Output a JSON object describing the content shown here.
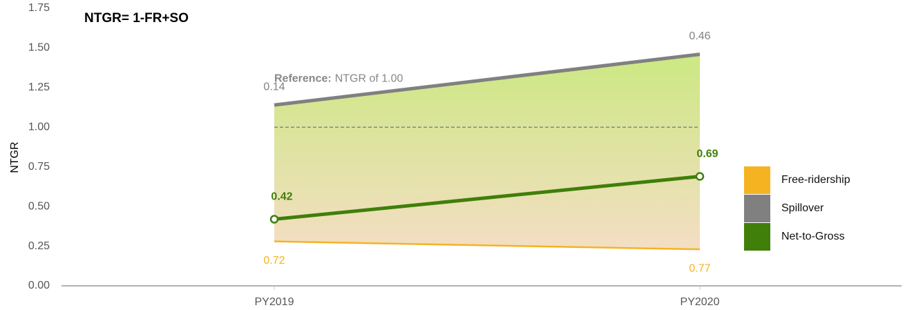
{
  "chart_data": {
    "type": "ntgr",
    "title": "NTGR= 1-FR+SO",
    "y_label": "NTGR",
    "categories": [
      "PY2019",
      "PY2020"
    ],
    "ylim": [
      0,
      1.75
    ],
    "yticks": [
      {
        "value": 0,
        "label": "0.00"
      },
      0.25,
      {
        "value": 0.5,
        "label": "0.50"
      },
      0.75,
      {
        "value": 1,
        "label": "1.00"
      },
      1.25,
      {
        "value": 1.5,
        "label": "1.50"
      },
      1.75
    ],
    "reference": {
      "value": 1,
      "title": "Reference:",
      "label": "NTGR of 1.00"
    },
    "series": [
      {
        "name": "Free-ridership",
        "color": "#f5b321",
        "values": [
          0.72,
          0.77
        ]
      },
      {
        "name": "Spillover",
        "color": "#808080",
        "values": [
          0.14,
          0.46
        ]
      },
      {
        "name": "Net-to-Gross",
        "color": "#3f7f0a",
        "values": [
          0.42,
          0.69
        ]
      }
    ]
  }
}
